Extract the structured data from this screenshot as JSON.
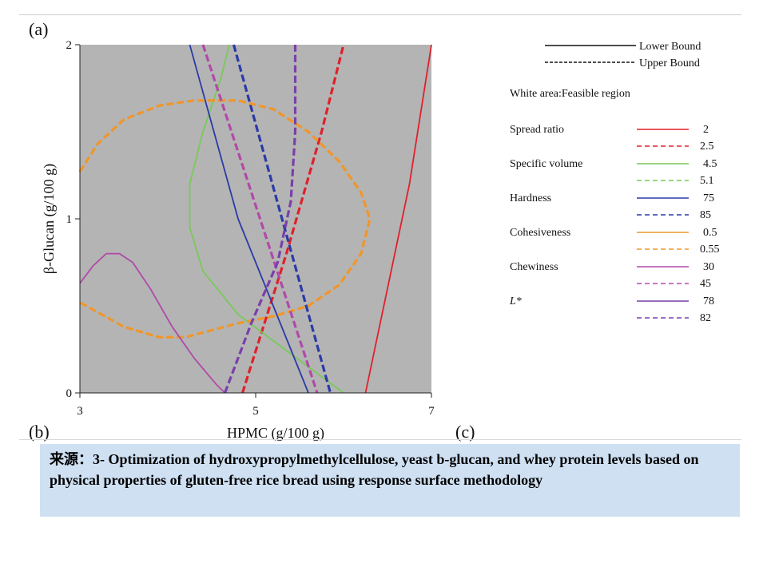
{
  "panels": {
    "a": "(a)",
    "b": "(b)",
    "c": "(c)"
  },
  "caption": {
    "prefix": "来源：",
    "text": "3- Optimization of hydroxypropylmethylcellulose, yeast b-glucan, and whey protein levels based on physical properties of gluten-free rice bread using response surface methodology"
  },
  "colors": {
    "plot_bg": "#b4b4b4",
    "spread": "#e0202a",
    "specific_volume": "#79c95a",
    "hardness": "#2a3aa6",
    "cohesiveness": "#f0962a",
    "chewiness": "#b04aa8",
    "lstar": "#7a3fa8"
  },
  "chart_data": {
    "type": "line",
    "title": "",
    "xlabel": "HPMC (g/100 g)",
    "ylabel": "β-Glucan (g/100 g)",
    "xlim": [
      3,
      7
    ],
    "ylim": [
      0,
      2
    ],
    "xticks": [
      "3",
      "5",
      "7"
    ],
    "yticks": [
      "0",
      "1",
      "2"
    ],
    "legend_bounds": [
      {
        "label": "Lower Bound",
        "style": "solid"
      },
      {
        "label": "Upper Bound",
        "style": "dashed"
      }
    ],
    "legend_note": "White area:Feasible region",
    "legend_entries": [
      {
        "property": "Spread ratio",
        "lower": "2",
        "upper": "2.5",
        "color_key": "spread"
      },
      {
        "property": "Specific volume",
        "lower": "4.5",
        "upper": "5.1",
        "color_key": "specific_volume"
      },
      {
        "property": "Hardness",
        "lower": "75",
        "upper": "85",
        "color_key": "hardness"
      },
      {
        "property": "Cohesiveness",
        "lower": "0.5",
        "upper": "0.55",
        "color_key": "cohesiveness"
      },
      {
        "property": "Chewiness",
        "lower": "30",
        "upper": "45",
        "color_key": "chewiness"
      },
      {
        "property": "L*",
        "lower": "78",
        "upper": "82",
        "color_key": "lstar"
      }
    ],
    "series": [
      {
        "color_key": "spread",
        "style": "solid",
        "points": [
          [
            6.25,
            0
          ],
          [
            6.5,
            0.6
          ],
          [
            6.75,
            1.2
          ],
          [
            7.0,
            2.0
          ]
        ]
      },
      {
        "color_key": "spread",
        "style": "dashed",
        "points": [
          [
            4.85,
            0
          ],
          [
            5.1,
            0.4
          ],
          [
            5.35,
            0.8
          ],
          [
            5.75,
            1.5
          ],
          [
            6.0,
            2.0
          ]
        ]
      },
      {
        "color_key": "specific_volume",
        "style": "solid",
        "points": [
          [
            4.7,
            2.0
          ],
          [
            4.6,
            1.8
          ],
          [
            4.4,
            1.5
          ],
          [
            4.25,
            1.2
          ],
          [
            4.25,
            0.95
          ],
          [
            4.4,
            0.7
          ],
          [
            4.8,
            0.45
          ],
          [
            5.2,
            0.3
          ],
          [
            5.6,
            0.15
          ],
          [
            6.0,
            0.0
          ]
        ]
      },
      {
        "color_key": "hardness",
        "style": "solid",
        "points": [
          [
            4.25,
            2.0
          ],
          [
            4.8,
            1.0
          ],
          [
            5.6,
            0.0
          ]
        ]
      },
      {
        "color_key": "hardness",
        "style": "dashed",
        "points": [
          [
            4.75,
            2.0
          ],
          [
            5.3,
            1.0
          ],
          [
            5.85,
            0.0
          ]
        ]
      },
      {
        "color_key": "cohesiveness",
        "style": "dashed",
        "points": [
          [
            3.0,
            1.27
          ],
          [
            3.2,
            1.43
          ],
          [
            3.5,
            1.57
          ],
          [
            3.9,
            1.65
          ],
          [
            4.3,
            1.68
          ],
          [
            4.8,
            1.68
          ],
          [
            5.2,
            1.63
          ],
          [
            5.6,
            1.5
          ],
          [
            5.95,
            1.33
          ],
          [
            6.2,
            1.15
          ],
          [
            6.3,
            1.0
          ],
          [
            6.2,
            0.8
          ],
          [
            5.95,
            0.62
          ],
          [
            5.6,
            0.5
          ],
          [
            5.2,
            0.44
          ],
          [
            4.8,
            0.4
          ],
          [
            4.5,
            0.36
          ],
          [
            4.2,
            0.32
          ],
          [
            3.9,
            0.32
          ],
          [
            3.5,
            0.38
          ],
          [
            3.0,
            0.52
          ]
        ]
      },
      {
        "color_key": "chewiness",
        "style": "solid",
        "points": [
          [
            3.0,
            0.63
          ],
          [
            3.15,
            0.73
          ],
          [
            3.3,
            0.8
          ],
          [
            3.45,
            0.8
          ],
          [
            3.6,
            0.75
          ],
          [
            3.8,
            0.6
          ],
          [
            4.05,
            0.38
          ],
          [
            4.3,
            0.2
          ],
          [
            4.55,
            0.05
          ],
          [
            4.65,
            0.0
          ]
        ]
      },
      {
        "color_key": "chewiness",
        "style": "dashed",
        "points": [
          [
            4.4,
            2.0
          ],
          [
            5.05,
            1.0
          ],
          [
            5.7,
            0.0
          ]
        ]
      },
      {
        "color_key": "lstar",
        "style": "dashed",
        "points": [
          [
            4.65,
            0
          ],
          [
            4.95,
            0.4
          ],
          [
            5.25,
            0.75
          ],
          [
            5.4,
            1.1
          ],
          [
            5.45,
            1.5
          ],
          [
            5.45,
            2.0
          ]
        ]
      }
    ]
  }
}
